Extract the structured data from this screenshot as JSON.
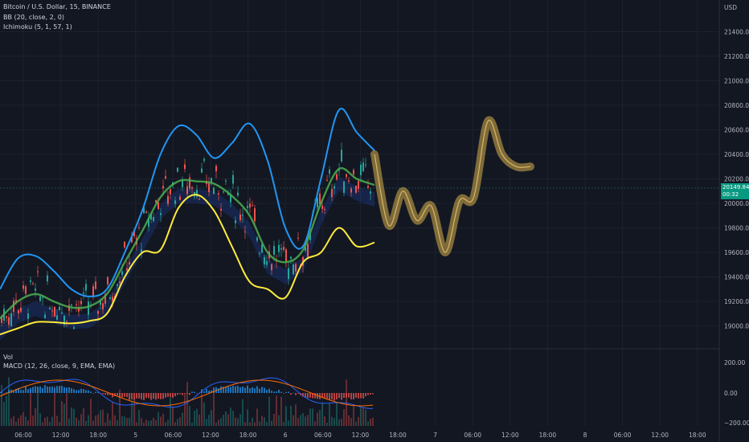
{
  "legend": {
    "symbol": "Bitcoin / U.S. Dollar, 15, BINANCE",
    "bb": "BB (20, close, 2, 0)",
    "ichimoku": "Ichimoku (5, 1, 57, 1)",
    "vol": "Vol",
    "macd": "MACD (12, 26, close, 9, EMA, EMA)"
  },
  "currency": "USD",
  "price_tag": {
    "price": "20149.84",
    "countdown": "00:32"
  },
  "price_axis": [
    "21400.00",
    "21200.00",
    "21000.00",
    "20800.00",
    "20600.00",
    "20400.00",
    "20200.00",
    "20000.00",
    "19800.00",
    "19600.00",
    "19400.00",
    "19200.00",
    "19000.00"
  ],
  "macd_axis": [
    "200.00",
    "0.00",
    "−200.00"
  ],
  "time_axis": [
    "06:00",
    "12:00",
    "18:00",
    "5",
    "06:00",
    "12:00",
    "18:00",
    "6",
    "06:00",
    "12:00",
    "18:00",
    "7",
    "06:00",
    "12:00",
    "18:00",
    "8",
    "06:00",
    "12:00",
    "18:00"
  ],
  "colors": {
    "background": "#131722",
    "grid": "#1e222d",
    "bb_basis": "#4caf50",
    "bb_upper": "#2196f3",
    "bb_lower": "#ffeb3b",
    "candle_up": "#26a69a",
    "candle_down": "#ef5350",
    "forecast": "#c8a34a",
    "price_tag": "#089981"
  },
  "chart_data": {
    "type": "line",
    "title": "Bitcoin / U.S. Dollar, 15, BINANCE",
    "ylim": [
      18900,
      21550
    ],
    "series": [
      {
        "name": "BB upper",
        "values": [
          19300,
          19550,
          19570,
          19450,
          19300,
          19240,
          19300,
          19600,
          19950,
          20400,
          20630,
          20560,
          20370,
          20490,
          20650,
          20350,
          19800,
          19650,
          20200,
          20760,
          20580,
          20430
        ]
      },
      {
        "name": "BB basis",
        "values": [
          19060,
          19200,
          19260,
          19200,
          19150,
          19160,
          19260,
          19520,
          19780,
          20050,
          20180,
          20180,
          20160,
          20060,
          19900,
          19600,
          19520,
          19620,
          20000,
          20280,
          20200,
          20150
        ]
      },
      {
        "name": "BB lower",
        "values": [
          18930,
          18980,
          19030,
          19030,
          19020,
          19040,
          19100,
          19400,
          19600,
          19620,
          19960,
          20070,
          19940,
          19650,
          19360,
          19300,
          19230,
          19520,
          19600,
          19800,
          19650,
          19680
        ]
      },
      {
        "name": "Forecast",
        "values": [
          20400,
          19820,
          20100,
          19860,
          19980,
          19600,
          20020,
          20050,
          20670,
          20400,
          20300,
          20300
        ]
      }
    ]
  }
}
